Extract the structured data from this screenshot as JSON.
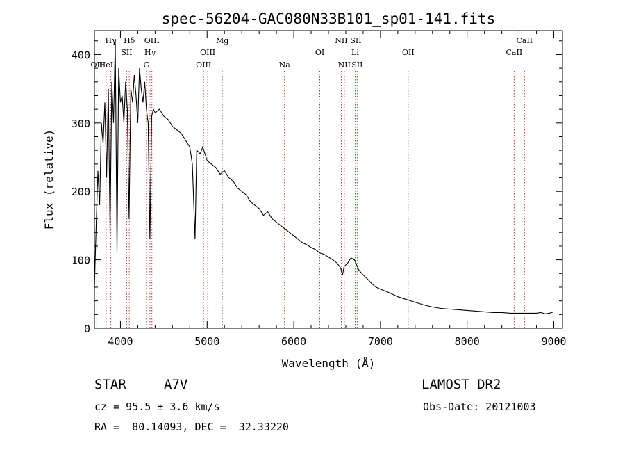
{
  "chart_data": {
    "type": "line",
    "title": "spec-56204-GAC080N33B101_sp01-141.fits",
    "xlabel": "Wavelength (Å)",
    "ylabel": "Flux (relative)",
    "xlim": [
      3700,
      9100
    ],
    "ylim": [
      0,
      435
    ],
    "x_ticks": [
      4000,
      5000,
      6000,
      7000,
      8000,
      9000
    ],
    "y_ticks": [
      0,
      100,
      200,
      300,
      400
    ],
    "series": [
      {
        "x": [
          3700,
          3720,
          3740,
          3760,
          3780,
          3800,
          3820,
          3840,
          3860,
          3880,
          3900,
          3920,
          3940,
          3960,
          3980,
          4000,
          4020,
          4040,
          4060,
          4080,
          4100,
          4120,
          4140,
          4160,
          4180,
          4200,
          4220,
          4240,
          4260,
          4280,
          4300,
          4320,
          4340,
          4360,
          4380,
          4400,
          4450,
          4500,
          4550,
          4600,
          4650,
          4700,
          4750,
          4800,
          4830,
          4861,
          4880,
          4920,
          4950,
          5000,
          5050,
          5100,
          5150,
          5200,
          5250,
          5300,
          5350,
          5400,
          5450,
          5500,
          5550,
          5600,
          5650,
          5700,
          5750,
          5800,
          5850,
          5900,
          5950,
          6000,
          6050,
          6100,
          6150,
          6200,
          6250,
          6300,
          6350,
          6400,
          6450,
          6500,
          6540,
          6563,
          6580,
          6620,
          6660,
          6700,
          6750,
          6800,
          6850,
          6900,
          6950,
          7000,
          7100,
          7200,
          7300,
          7400,
          7500,
          7600,
          7700,
          7800,
          7900,
          8000,
          8100,
          8200,
          8300,
          8400,
          8500,
          8600,
          8700,
          8800,
          8850,
          8900,
          8950,
          9000
        ],
        "y": [
          60,
          150,
          230,
          180,
          300,
          270,
          330,
          220,
          350,
          140,
          360,
          300,
          420,
          110,
          380,
          330,
          340,
          300,
          360,
          320,
          160,
          350,
          330,
          370,
          340,
          300,
          380,
          350,
          330,
          360,
          320,
          300,
          130,
          310,
          320,
          315,
          320,
          310,
          305,
          295,
          290,
          285,
          275,
          265,
          240,
          130,
          260,
          255,
          265,
          245,
          240,
          235,
          225,
          230,
          220,
          215,
          205,
          200,
          195,
          185,
          180,
          175,
          165,
          170,
          160,
          155,
          150,
          145,
          140,
          135,
          130,
          125,
          122,
          118,
          115,
          110,
          108,
          104,
          100,
          95,
          88,
          78,
          90,
          95,
          103,
          100,
          85,
          78,
          72,
          65,
          60,
          57,
          52,
          46,
          42,
          38,
          34,
          31,
          29,
          28,
          27,
          26,
          25,
          24,
          23,
          23,
          22,
          22,
          22,
          22,
          23,
          21,
          22,
          24
        ]
      }
    ],
    "line_markers": [
      {
        "wavelength": 3727,
        "label": "OII",
        "row": 3
      },
      {
        "wavelength": 3835,
        "label": "HeI",
        "row": 3
      },
      {
        "wavelength": 3889,
        "label": "Hγ",
        "row": 1
      },
      {
        "wavelength": 4072,
        "label": "SII",
        "row": 2
      },
      {
        "wavelength": 4102,
        "label": "Hδ",
        "row": 1
      },
      {
        "wavelength": 4300,
        "label": "G",
        "row": 3
      },
      {
        "wavelength": 4341,
        "label": "Hγ",
        "row": 2
      },
      {
        "wavelength": 4363,
        "label": "OIII",
        "row": 1
      },
      {
        "wavelength": 4959,
        "label": "OIII",
        "row": 3
      },
      {
        "wavelength": 5007,
        "label": "OIII",
        "row": 2
      },
      {
        "wavelength": 5175,
        "label": "Mg",
        "row": 1
      },
      {
        "wavelength": 5893,
        "label": "Na",
        "row": 3
      },
      {
        "wavelength": 6300,
        "label": "OI",
        "row": 2
      },
      {
        "wavelength": 6548,
        "label": "NII",
        "row": 1
      },
      {
        "wavelength": 6583,
        "label": "NII",
        "row": 3
      },
      {
        "wavelength": 6708,
        "label": "Li",
        "row": 2
      },
      {
        "wavelength": 6716,
        "label": "SII",
        "row": 1
      },
      {
        "wavelength": 6731,
        "label": "SII",
        "row": 3
      },
      {
        "wavelength": 7320,
        "label": "OII",
        "row": 2
      },
      {
        "wavelength": 8542,
        "label": "CaII",
        "row": 2
      },
      {
        "wavelength": 8662,
        "label": "CaII",
        "row": 1
      }
    ]
  },
  "info": {
    "object_class": "STAR",
    "subclass": "A7V",
    "survey": "LAMOST DR2",
    "cz": "cz = 95.5 ± 3.6 km/s",
    "obs_date": "Obs-Date: 20121003",
    "coords": "RA =  80.14093, DEC =  32.33220"
  }
}
